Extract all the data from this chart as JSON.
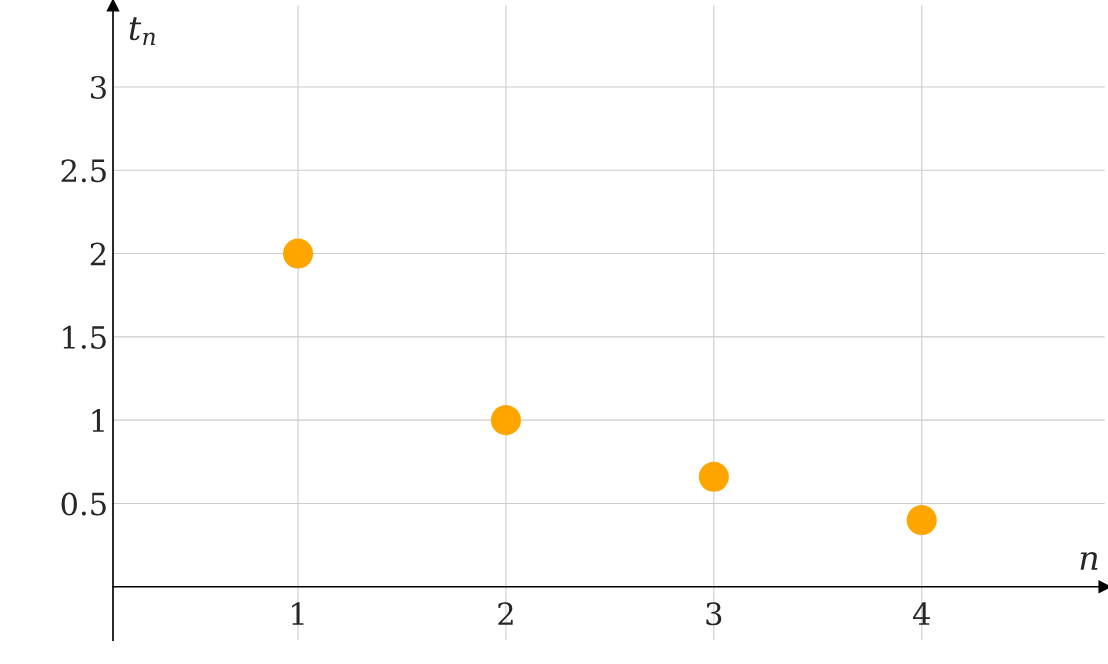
{
  "chart_data": {
    "type": "scatter",
    "xlabel": "n",
    "ylabel": "t$_{n}$",
    "x": [
      1,
      2,
      3,
      4
    ],
    "series": [
      {
        "color": "#ffa500",
        "values": [
          2,
          1,
          0.66,
          0.4
        ]
      }
    ],
    "xlim": [
      0.11,
      4.88
    ],
    "ylim": [
      -0.32,
      3.49
    ],
    "xticks": [
      1,
      2,
      3,
      4
    ],
    "yticks": [
      0.5,
      1,
      1.5,
      2,
      2.5,
      3
    ],
    "grid": true,
    "marker": "circle"
  }
}
